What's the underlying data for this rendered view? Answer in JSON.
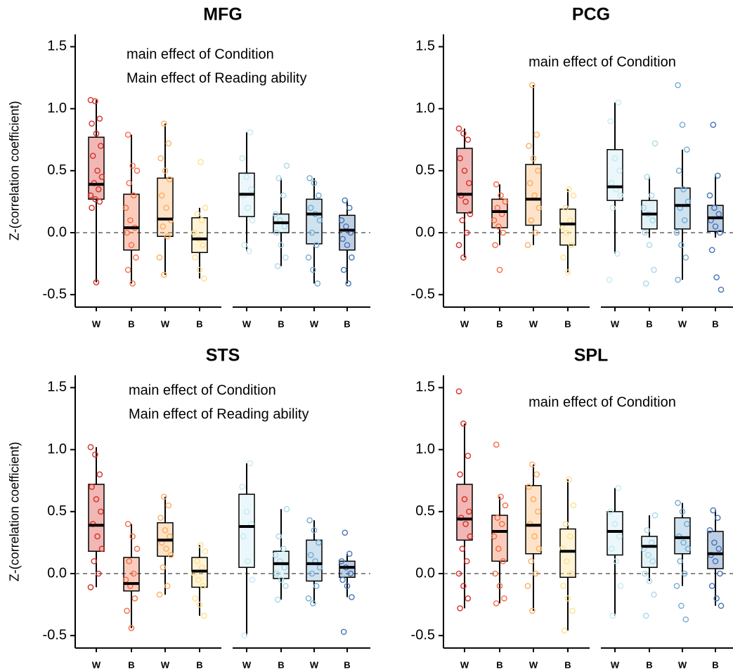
{
  "chart_data": [
    {
      "type": "box",
      "title": "MFG",
      "annotations": [
        "main effect of Condition",
        "Main effect of Reading ability"
      ],
      "ylabel": "Z-(correlation coefficient)",
      "categories": [
        "W",
        "B",
        "W",
        "B",
        "W",
        "B",
        "W",
        "B"
      ],
      "colors": [
        "#d73027",
        "#f46d43",
        "#fdae61",
        "#fee090",
        "#c6e9f2",
        "#abd9e9",
        "#74add1",
        "#4575b4"
      ],
      "ylim": [
        -0.6,
        1.6
      ],
      "yticks": [
        1.5,
        {
          "value": 1.0,
          "label": "1.0"
        },
        0.5,
        {
          "value": 0.0,
          "label": "0.0"
        },
        -0.5
      ],
      "hline": 0,
      "boxes": [
        {
          "min": -0.4,
          "q1": 0.27,
          "median": 0.39,
          "q3": 0.77,
          "max": 1.07,
          "points": [
            1.07,
            1.06,
            0.92,
            0.88,
            0.8,
            0.7,
            0.62,
            0.5,
            0.45,
            0.4,
            0.35,
            0.3,
            0.27,
            0.25,
            0.2,
            -0.4
          ]
        },
        {
          "min": -0.41,
          "q1": -0.14,
          "median": 0.04,
          "q3": 0.31,
          "max": 0.79,
          "points": [
            0.79,
            0.54,
            0.5,
            0.4,
            0.3,
            0.2,
            0.1,
            0.04,
            0,
            -0.1,
            -0.2,
            -0.3,
            -0.41
          ]
        },
        {
          "min": -0.34,
          "q1": -0.03,
          "median": 0.11,
          "q3": 0.44,
          "max": 0.88,
          "points": [
            0.88,
            0.72,
            0.6,
            0.5,
            0.43,
            0.3,
            0.2,
            0.1,
            0.05,
            -0.03,
            -0.2,
            -0.34
          ]
        },
        {
          "min": -0.37,
          "q1": -0.16,
          "median": -0.05,
          "q3": 0.12,
          "max": 0.2,
          "points": [
            0.57,
            0.2,
            0.15,
            0.1,
            0,
            -0.05,
            -0.1,
            -0.2,
            -0.3,
            -0.37
          ]
        },
        {
          "min": -0.15,
          "q1": 0.13,
          "median": 0.31,
          "q3": 0.48,
          "max": 0.81,
          "points": [
            0.81,
            0.6,
            0.45,
            0.35,
            0.3,
            0.2,
            0.1,
            -0.1,
            -0.15
          ]
        },
        {
          "min": -0.27,
          "q1": 0.0,
          "median": 0.08,
          "q3": 0.15,
          "max": 0.44,
          "points": [
            0.54,
            0.44,
            0.3,
            0.15,
            0.1,
            0.05,
            0,
            -0.1,
            -0.2,
            -0.27
          ]
        },
        {
          "min": -0.41,
          "q1": -0.09,
          "median": 0.15,
          "q3": 0.27,
          "max": 0.44,
          "points": [
            0.44,
            0.4,
            0.3,
            0.2,
            0.15,
            0.1,
            0,
            -0.1,
            -0.2,
            -0.3,
            -0.41
          ]
        },
        {
          "min": -0.41,
          "q1": -0.14,
          "median": 0.02,
          "q3": 0.14,
          "max": 0.26,
          "points": [
            0.26,
            0.2,
            0.1,
            0.05,
            0,
            -0.05,
            -0.1,
            -0.2,
            -0.3,
            -0.41
          ]
        }
      ]
    },
    {
      "type": "box",
      "title": "PCG",
      "annotations": [
        "main effect of Condition"
      ],
      "categories": [
        "W",
        "B",
        "W",
        "B",
        "W",
        "B",
        "W",
        "B"
      ],
      "colors": [
        "#d73027",
        "#f46d43",
        "#fdae61",
        "#fee090",
        "#c6e9f2",
        "#abd9e9",
        "#74add1",
        "#4575b4"
      ],
      "ylim": [
        -0.6,
        1.6
      ],
      "yticks": [
        1.5,
        {
          "value": 1.0,
          "label": "1.0"
        },
        0.5,
        {
          "value": 0.0,
          "label": "0.0"
        },
        -0.5
      ],
      "hline": 0,
      "boxes": [
        {
          "min": -0.2,
          "q1": 0.16,
          "median": 0.31,
          "q3": 0.68,
          "max": 0.84,
          "points": [
            0.84,
            0.8,
            0.75,
            0.6,
            0.5,
            0.4,
            0.3,
            0.25,
            0.15,
            0.1,
            0,
            -0.1,
            -0.2
          ]
        },
        {
          "min": -0.1,
          "q1": 0.04,
          "median": 0.17,
          "q3": 0.27,
          "max": 0.39,
          "points": [
            0.39,
            0.3,
            0.25,
            0.2,
            0.15,
            0.1,
            0.05,
            0,
            -0.1,
            -0.3
          ]
        },
        {
          "min": -0.1,
          "q1": 0.06,
          "median": 0.27,
          "q3": 0.55,
          "max": 1.19,
          "points": [
            1.19,
            0.79,
            0.7,
            0.6,
            0.5,
            0.4,
            0.3,
            0.2,
            0.1,
            0,
            -0.1
          ]
        },
        {
          "min": -0.32,
          "q1": -0.1,
          "median": 0.07,
          "q3": 0.19,
          "max": 0.35,
          "points": [
            0.35,
            0.3,
            0.2,
            0.1,
            0.05,
            0,
            -0.1,
            -0.2,
            -0.32
          ]
        },
        {
          "min": -0.17,
          "q1": 0.26,
          "median": 0.37,
          "q3": 0.67,
          "max": 1.05,
          "points": [
            1.05,
            0.9,
            0.6,
            0.5,
            0.4,
            0.35,
            0.3,
            0.2,
            -0.17,
            -0.38
          ]
        },
        {
          "min": -0.04,
          "q1": 0.03,
          "median": 0.15,
          "q3": 0.26,
          "max": 0.45,
          "points": [
            0.72,
            0.45,
            0.3,
            0.2,
            0.15,
            0.1,
            0,
            -0.1,
            -0.3,
            -0.41
          ]
        },
        {
          "min": -0.38,
          "q1": 0.03,
          "median": 0.22,
          "q3": 0.36,
          "max": 0.67,
          "points": [
            1.19,
            0.87,
            0.67,
            0.5,
            0.35,
            0.25,
            0.2,
            0.1,
            0,
            -0.1,
            -0.2,
            -0.38
          ]
        },
        {
          "min": -0.04,
          "q1": 0.01,
          "median": 0.12,
          "q3": 0.22,
          "max": 0.46,
          "points": [
            0.87,
            0.46,
            0.3,
            0.2,
            0.15,
            0.1,
            0.05,
            0,
            -0.14,
            -0.36,
            -0.46
          ]
        }
      ]
    },
    {
      "type": "box",
      "title": "STS",
      "annotations": [
        "main effect of Condition",
        "Main effect of Reading ability"
      ],
      "ylabel": "Z-(correlation coefficient)",
      "categories": [
        "W",
        "B",
        "W",
        "B",
        "W",
        "B",
        "W",
        "B"
      ],
      "colors": [
        "#d73027",
        "#f46d43",
        "#fdae61",
        "#fee090",
        "#c6e9f2",
        "#abd9e9",
        "#74add1",
        "#4575b4"
      ],
      "ylim": [
        -0.6,
        1.6
      ],
      "yticks": [
        1.5,
        {
          "value": 1.0,
          "label": "1.0"
        },
        0.5,
        {
          "value": 0.0,
          "label": "0.0"
        },
        -0.5
      ],
      "hline": 0,
      "boxes": [
        {
          "min": -0.11,
          "q1": 0.18,
          "median": 0.39,
          "q3": 0.72,
          "max": 1.02,
          "points": [
            1.02,
            0.96,
            0.8,
            0.7,
            0.6,
            0.5,
            0.4,
            0.3,
            0.2,
            0.1,
            0,
            -0.11
          ]
        },
        {
          "min": -0.44,
          "q1": -0.14,
          "median": -0.08,
          "q3": 0.13,
          "max": 0.4,
          "points": [
            0.4,
            0.3,
            0.2,
            0.1,
            0,
            -0.05,
            -0.1,
            -0.2,
            -0.3,
            -0.44
          ]
        },
        {
          "min": -0.17,
          "q1": 0.14,
          "median": 0.27,
          "q3": 0.41,
          "max": 0.62,
          "points": [
            0.62,
            0.55,
            0.45,
            0.35,
            0.3,
            0.25,
            0.2,
            0.15,
            0.05,
            -0.1,
            -0.17
          ]
        },
        {
          "min": -0.34,
          "q1": -0.11,
          "median": 0.02,
          "q3": 0.13,
          "max": 0.23,
          "points": [
            0.23,
            0.18,
            0.1,
            0.05,
            0,
            -0.05,
            -0.1,
            -0.2,
            -0.25,
            -0.34
          ]
        },
        {
          "min": -0.5,
          "q1": 0.05,
          "median": 0.38,
          "q3": 0.64,
          "max": 0.89,
          "points": [
            0.89,
            0.7,
            0.5,
            0.4,
            0.3,
            0.1,
            -0.05,
            -0.5
          ]
        },
        {
          "min": -0.21,
          "q1": -0.04,
          "median": 0.08,
          "q3": 0.18,
          "max": 0.52,
          "points": [
            0.52,
            0.3,
            0.2,
            0.15,
            0.1,
            0.05,
            0,
            -0.05,
            -0.1,
            -0.21
          ]
        },
        {
          "min": -0.24,
          "q1": -0.06,
          "median": 0.08,
          "q3": 0.27,
          "max": 0.43,
          "points": [
            0.43,
            0.35,
            0.25,
            0.15,
            0.1,
            0.05,
            0,
            -0.1,
            -0.2,
            -0.24
          ]
        },
        {
          "min": -0.19,
          "q1": -0.03,
          "median": 0.05,
          "q3": 0.1,
          "max": 0.16,
          "points": [
            0.33,
            0.16,
            0.1,
            0.05,
            0,
            -0.05,
            -0.1,
            -0.19,
            -0.47
          ]
        }
      ]
    },
    {
      "type": "box",
      "title": "SPL",
      "annotations": [
        "main effect of Condition"
      ],
      "categories": [
        "W",
        "B",
        "W",
        "B",
        "W",
        "B",
        "W",
        "B"
      ],
      "colors": [
        "#d73027",
        "#f46d43",
        "#fdae61",
        "#fee090",
        "#c6e9f2",
        "#abd9e9",
        "#74add1",
        "#4575b4"
      ],
      "ylim": [
        -0.6,
        1.6
      ],
      "yticks": [
        1.5,
        {
          "value": 1.0,
          "label": "1.0"
        },
        0.5,
        {
          "value": 0.0,
          "label": "0.0"
        },
        -0.5
      ],
      "hline": 0,
      "boxes": [
        {
          "min": -0.28,
          "q1": 0.27,
          "median": 0.44,
          "q3": 0.72,
          "max": 1.21,
          "points": [
            1.47,
            1.21,
            0.95,
            0.8,
            0.6,
            0.5,
            0.45,
            0.4,
            0.3,
            0.2,
            0.1,
            0,
            -0.1,
            -0.2,
            -0.28
          ]
        },
        {
          "min": -0.24,
          "q1": 0.1,
          "median": 0.34,
          "q3": 0.47,
          "max": 0.62,
          "points": [
            1.04,
            0.62,
            0.55,
            0.45,
            0.4,
            0.3,
            0.2,
            0.1,
            0,
            -0.1,
            -0.2,
            -0.24
          ]
        },
        {
          "min": -0.3,
          "q1": 0.16,
          "median": 0.39,
          "q3": 0.71,
          "max": 0.88,
          "points": [
            0.88,
            0.8,
            0.7,
            0.6,
            0.5,
            0.4,
            0.3,
            0.2,
            0.1,
            0,
            -0.1,
            -0.3
          ]
        },
        {
          "min": -0.46,
          "q1": -0.03,
          "median": 0.18,
          "q3": 0.36,
          "max": 0.76,
          "points": [
            0.76,
            0.55,
            0.4,
            0.3,
            0.2,
            0.1,
            0,
            -0.1,
            -0.2,
            -0.3,
            -0.46
          ]
        },
        {
          "min": -0.34,
          "q1": 0.15,
          "median": 0.34,
          "q3": 0.5,
          "max": 0.69,
          "points": [
            0.69,
            0.5,
            0.4,
            0.3,
            0.2,
            0.1,
            -0.1,
            -0.34
          ]
        },
        {
          "min": -0.06,
          "q1": 0.05,
          "median": 0.22,
          "q3": 0.3,
          "max": 0.47,
          "points": [
            0.47,
            0.35,
            0.25,
            0.2,
            0.15,
            0.1,
            0,
            -0.06,
            -0.17,
            -0.34
          ]
        },
        {
          "min": -0.1,
          "q1": 0.16,
          "median": 0.29,
          "q3": 0.45,
          "max": 0.57,
          "points": [
            0.57,
            0.5,
            0.4,
            0.3,
            0.25,
            0.2,
            0.1,
            0,
            -0.1,
            -0.26,
            -0.37
          ]
        },
        {
          "min": -0.26,
          "q1": 0.04,
          "median": 0.16,
          "q3": 0.34,
          "max": 0.51,
          "points": [
            0.51,
            0.45,
            0.35,
            0.25,
            0.2,
            0.15,
            0.1,
            0,
            -0.1,
            -0.2,
            -0.26
          ]
        }
      ]
    }
  ]
}
